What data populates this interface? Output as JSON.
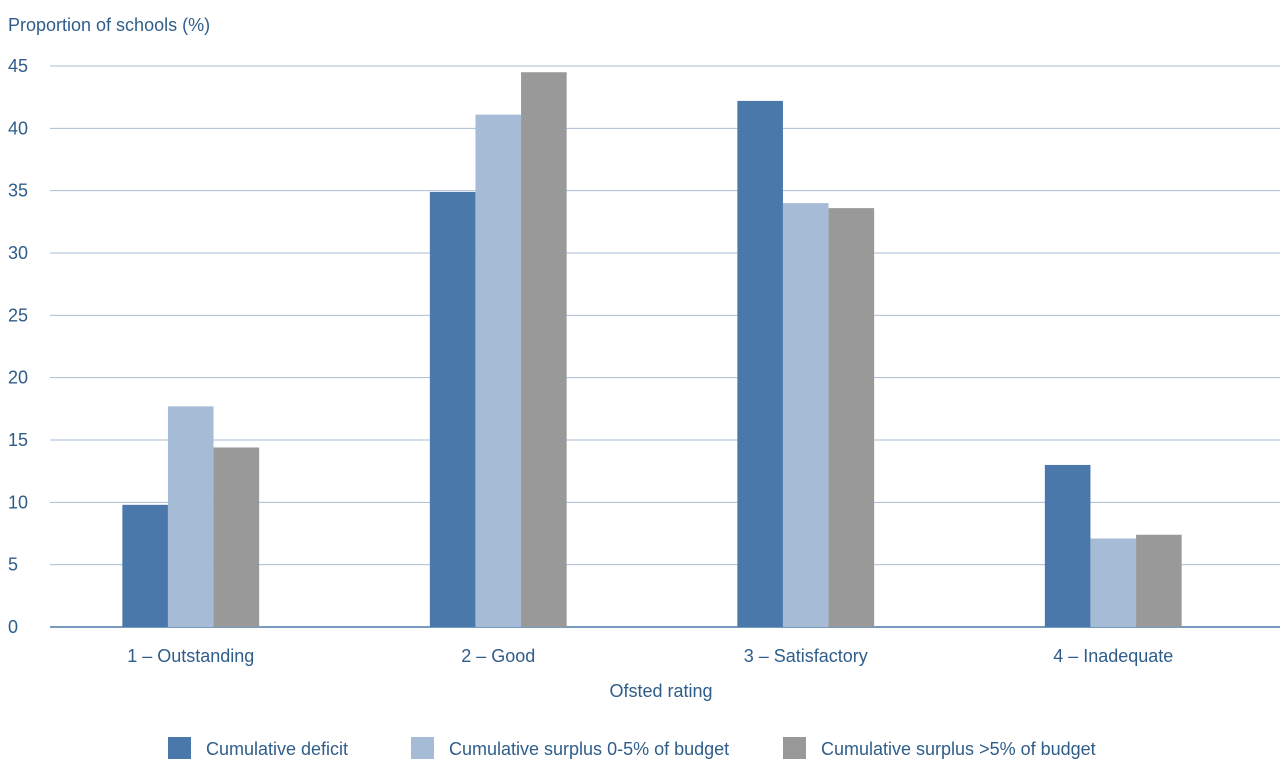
{
  "chart_data": {
    "type": "bar",
    "title": "",
    "ylabel": "Proportion of schools (%)",
    "xlabel": "Ofsted rating",
    "categories": [
      "1 – Outstanding",
      "2 – Good",
      "3 – Satisfactory",
      "4 – Inadequate"
    ],
    "series": [
      {
        "name": "Cumulative deficit",
        "color": "#4a78aa",
        "values": [
          9.8,
          34.9,
          42.2,
          13.0
        ]
      },
      {
        "name": "Cumulative surplus 0-5% of budget",
        "color": "#a6bcd6",
        "values": [
          17.7,
          41.1,
          34.0,
          7.1
        ]
      },
      {
        "name": "Cumulative surplus >5% of budget",
        "color": "#999999",
        "values": [
          14.4,
          44.5,
          33.6,
          7.4
        ]
      }
    ],
    "ylim": [
      0,
      45
    ],
    "yticks": [
      0,
      5,
      10,
      15,
      20,
      25,
      30,
      35,
      40,
      45
    ],
    "grid": true,
    "legend_position": "bottom"
  }
}
